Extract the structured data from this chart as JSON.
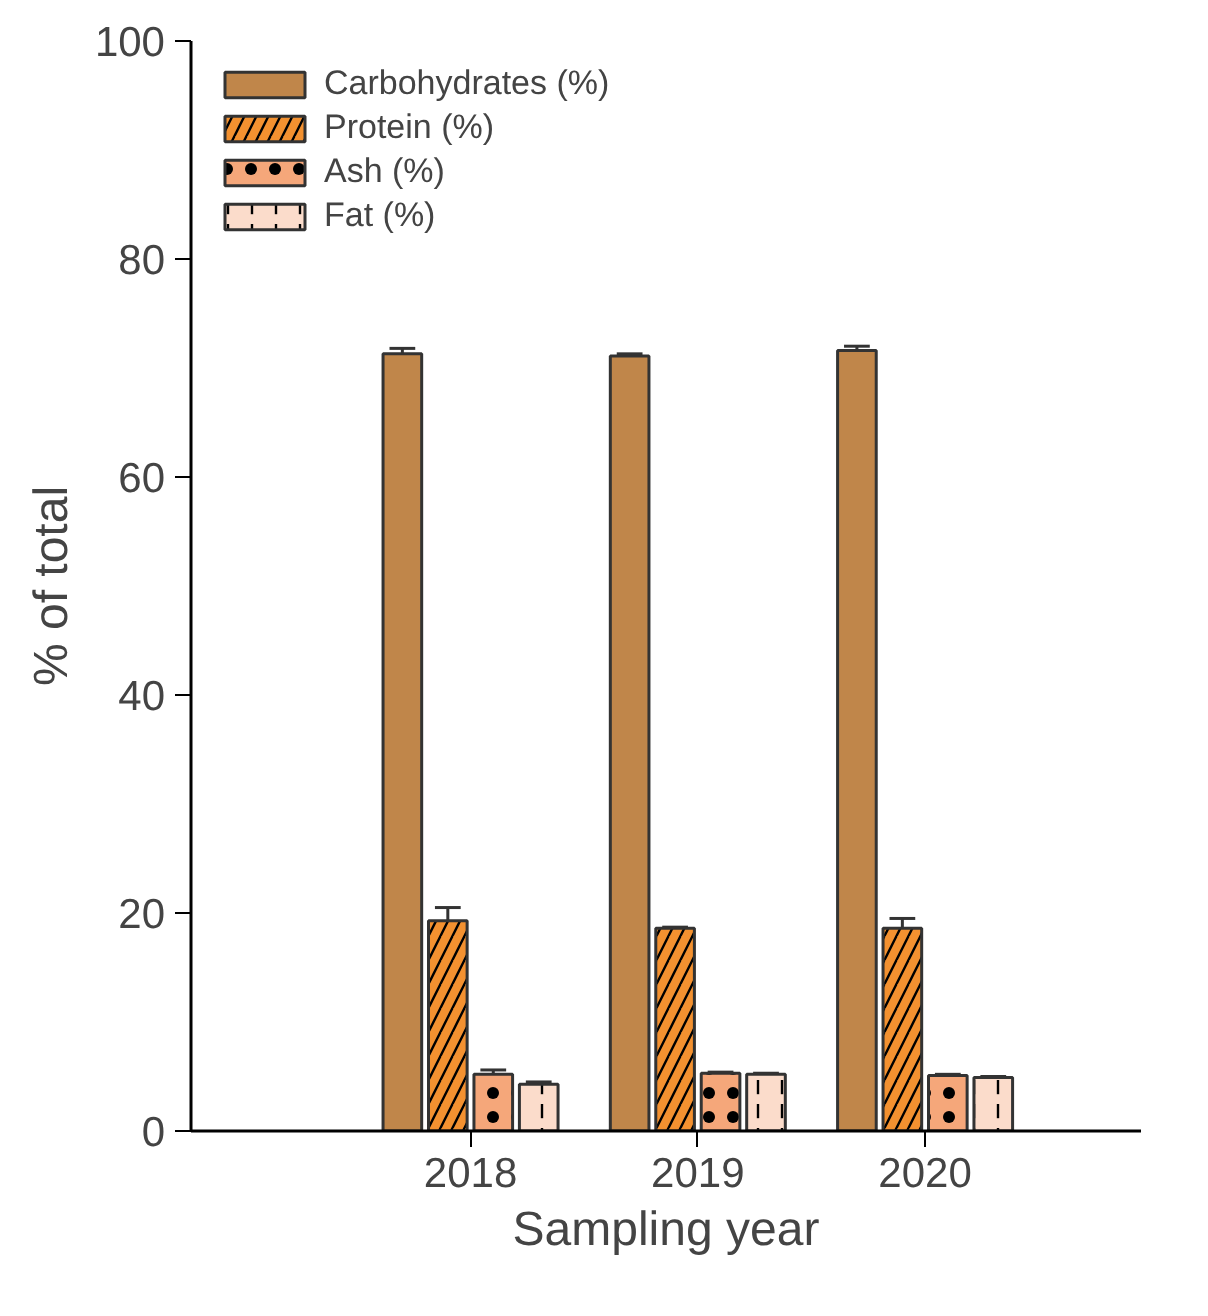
{
  "chart_data": {
    "type": "bar",
    "xlabel": "Sampling year",
    "ylabel": "% of total",
    "categories": [
      "2018",
      "2019",
      "2020"
    ],
    "series": [
      {
        "name": "Carbohydrates (%)",
        "color": "#c0864a",
        "values": [
          71.3,
          71.1,
          71.6
        ],
        "errors": [
          0.5,
          0.2,
          0.4
        ]
      },
      {
        "name": "Protein (%)",
        "color": "#f39130",
        "values": [
          19.3,
          18.6,
          18.6
        ],
        "errors": [
          1.2,
          0.1,
          0.9
        ]
      },
      {
        "name": "Ash (%)",
        "color": "#f5a77a",
        "values": [
          5.2,
          5.3,
          5.1
        ],
        "errors": [
          0.4,
          0.1,
          0.1
        ]
      },
      {
        "name": "Fat (%)",
        "color": "#fbdccb",
        "values": [
          4.3,
          5.2,
          4.9
        ],
        "errors": [
          0.2,
          0.1,
          0.1
        ]
      }
    ],
    "ylim": [
      0,
      100
    ],
    "yticks": [
      0,
      20,
      40,
      60,
      80,
      100
    ],
    "grid": false,
    "legend": "top left"
  }
}
